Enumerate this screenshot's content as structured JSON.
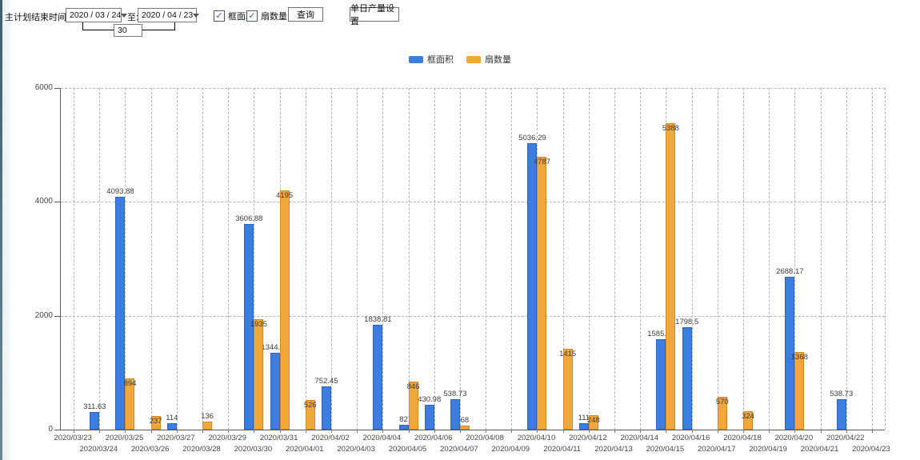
{
  "toolbar": {
    "plan_end_label": "主计划结束时间:",
    "date_from": "2020 / 03 / 24",
    "to_label": "至:",
    "date_to": "2020 / 04 / 23",
    "interval_value": "30",
    "checkbox_frame_area": "框面积",
    "checkbox_fan_count": "扇数量",
    "query_button": "查询",
    "daily_output_button": "单日产量设置"
  },
  "legend": [
    {
      "label": "框面积",
      "color": "#3d7de0"
    },
    {
      "label": "扇数量",
      "color": "#f0a73c"
    }
  ],
  "chart_data": {
    "type": "bar",
    "title": "",
    "xlabel": "",
    "ylabel": "",
    "ylim": [
      0,
      6000
    ],
    "yticks": [
      0,
      2000,
      4000,
      6000
    ],
    "grid": true,
    "legend_position": "top",
    "categories": [
      "2020/03/23",
      "2020/03/24",
      "2020/03/25",
      "2020/03/26",
      "2020/03/27",
      "2020/03/28",
      "2020/03/29",
      "2020/03/30",
      "2020/03/31",
      "2020/04/01",
      "2020/04/02",
      "2020/04/03",
      "2020/04/04",
      "2020/04/05",
      "2020/04/06",
      "2020/04/07",
      "2020/04/08",
      "2020/04/09",
      "2020/04/10",
      "2020/04/11",
      "2020/04/12",
      "2020/04/13",
      "2020/04/14",
      "2020/04/15",
      "2020/04/16",
      "2020/04/17",
      "2020/04/18",
      "2020/04/19",
      "2020/04/20",
      "2020/04/21",
      "2020/04/22",
      "2020/04/23"
    ],
    "series": [
      {
        "name": "框面积",
        "color": "#3d7de0",
        "edge": "#2f64bd",
        "values": [
          null,
          311.63,
          4093.88,
          null,
          114,
          null,
          null,
          3606.88,
          1344.95,
          null,
          752.45,
          null,
          1838.81,
          82,
          430.98,
          538.73,
          null,
          null,
          5036.29,
          null,
          111,
          null,
          null,
          1585.96,
          1798.5,
          null,
          null,
          null,
          2688.17,
          null,
          538.73,
          null
        ]
      },
      {
        "name": "扇数量",
        "color": "#f0a73c",
        "edge": "#cd8a24",
        "values": [
          null,
          null,
          894,
          237,
          null,
          136,
          null,
          1935,
          4195,
          526,
          null,
          null,
          null,
          846,
          null,
          68,
          null,
          null,
          4787,
          1415,
          248,
          null,
          null,
          5388,
          null,
          570,
          324,
          null,
          1368,
          null,
          null,
          null
        ]
      }
    ]
  }
}
